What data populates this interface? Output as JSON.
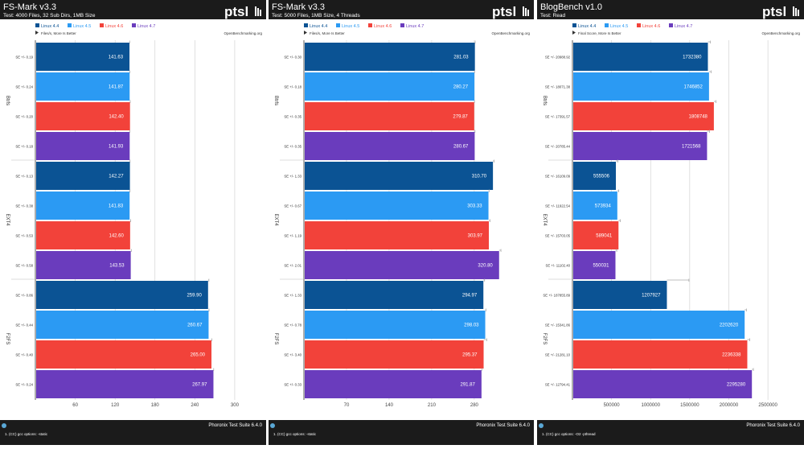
{
  "colors": {
    "header_bg": "#1b1b1b",
    "header_text": "#ffffff",
    "chart_bg": "#ffffff",
    "grid": "#cccccc",
    "axis_label": "#444444",
    "error_bar": "#aaaaaa"
  },
  "watermark": "OpenBenchmarking.org",
  "direction_note": "More is Better",
  "legend": [
    {
      "name": "Linux 4.4",
      "color": "#0b5394"
    },
    {
      "name": "Linux 4.5",
      "color": "#2b9af3"
    },
    {
      "name": "Linux 4.6",
      "color": "#f2423a"
    },
    {
      "name": "Linux 4.7",
      "color": "#6a3cbd"
    }
  ],
  "chart_data": [
    {
      "type": "bar",
      "title": "FS-Mark v3.3",
      "subtitle": "Test: 4000 Files, 32 Sub Dirs, 1MB Size",
      "direction": "Files/s, More Is Better",
      "groups": [
        "Btrfs",
        "EXT4",
        "F2FS"
      ],
      "series": [
        {
          "name": "Linux 4.4",
          "values": [
            141.63,
            142.27,
            259.9
          ],
          "errors": [
            "SE +/- 0.19",
            "SE +/- 0.13",
            "SE +/- 0.86"
          ]
        },
        {
          "name": "Linux 4.5",
          "values": [
            141.87,
            141.83,
            260.67
          ],
          "errors": [
            "SE +/- 0.24",
            "SE +/- 0.38",
            "SE +/- 0.44"
          ]
        },
        {
          "name": "Linux 4.6",
          "values": [
            142.4,
            142.6,
            265.0
          ],
          "errors": [
            "SE +/- 0.20",
            "SE +/- 0.53",
            "SE +/- 0.40"
          ]
        },
        {
          "name": "Linux 4.7",
          "values": [
            141.93,
            143.53,
            267.97
          ],
          "errors": [
            "SE +/- 0.18",
            "SE +/- 0.58",
            "SE +/- 0.24"
          ]
        }
      ],
      "xticks": [
        60,
        120,
        180,
        240,
        300
      ],
      "xlim": [
        0,
        340
      ],
      "footer_left": "1. (CC) gcc options: -static",
      "footer_right": "Phoronix Test Suite 6.4.0"
    },
    {
      "type": "bar",
      "title": "FS-Mark v3.3",
      "subtitle": "Test: 5000 Files, 1MB Size, 4 Threads",
      "direction": "Files/s, More Is Better",
      "groups": [
        "Btrfs",
        "EXT4",
        "F2FS"
      ],
      "series": [
        {
          "name": "Linux 4.4",
          "values": [
            281.03,
            310.7,
            294.97
          ],
          "errors": [
            "SE +/- 0.30",
            "SE +/- 1.33",
            "SE +/- 1.33"
          ]
        },
        {
          "name": "Linux 4.5",
          "values": [
            280.27,
            303.33,
            298.03
          ],
          "errors": [
            "SE +/- 0.18",
            "SE +/- 0.67",
            "SE +/- 0.78"
          ]
        },
        {
          "name": "Linux 4.6",
          "values": [
            279.87,
            303.97,
            295.37
          ],
          "errors": [
            "SE +/- 0.35",
            "SE +/- 1.19",
            "SE +/- 3.40"
          ]
        },
        {
          "name": "Linux 4.7",
          "values": [
            280.67,
            320.8,
            291.87
          ],
          "errors": [
            "SE +/- 0.35",
            "SE +/- 2.01",
            "SE +/- 0.33"
          ]
        }
      ],
      "xticks": [
        70,
        140,
        210,
        280
      ],
      "xlim": [
        0,
        370
      ],
      "footer_left": "1. (CC) gcc options: -static",
      "footer_right": "Phoronix Test Suite 6.4.0"
    },
    {
      "type": "bar",
      "title": "BlogBench v1.0",
      "subtitle": "Test: Read",
      "direction": "Final Score, More Is Better",
      "groups": [
        "Btrfs",
        "EXT4",
        "F2FS"
      ],
      "series": [
        {
          "name": "Linux 4.4",
          "values": [
            1732380,
            555506,
            1207927
          ],
          "errors": [
            "SE +/- 20988.92",
            "SE +/- 16109.09",
            "SE +/- 187855.89"
          ]
        },
        {
          "name": "Linux 4.5",
          "values": [
            1746852,
            573934,
            2202620
          ],
          "errors": [
            "SE +/- 18071.38",
            "SE +/- 11922.54",
            "SE +/- 15341.86"
          ]
        },
        {
          "name": "Linux 4.6",
          "values": [
            1808748,
            589041,
            2236338
          ],
          "errors": [
            "SE +/- 17391.57",
            "SE +/- 15703.05",
            "SE +/- 21281.10"
          ]
        },
        {
          "name": "Linux 4.7",
          "values": [
            1721568,
            550031,
            2295280
          ],
          "errors": [
            "SE +/- 20785.44",
            "SE +/- 11102.40",
            "SE +/- 12794.41"
          ]
        }
      ],
      "xticks": [
        500000,
        1000000,
        1500000,
        2000000,
        2500000
      ],
      "xlim": [
        0,
        2900000
      ],
      "footer_left": "1. (CC) gcc options: -O2 -pthread",
      "footer_right": "Phoronix Test Suite 6.4.0"
    }
  ]
}
